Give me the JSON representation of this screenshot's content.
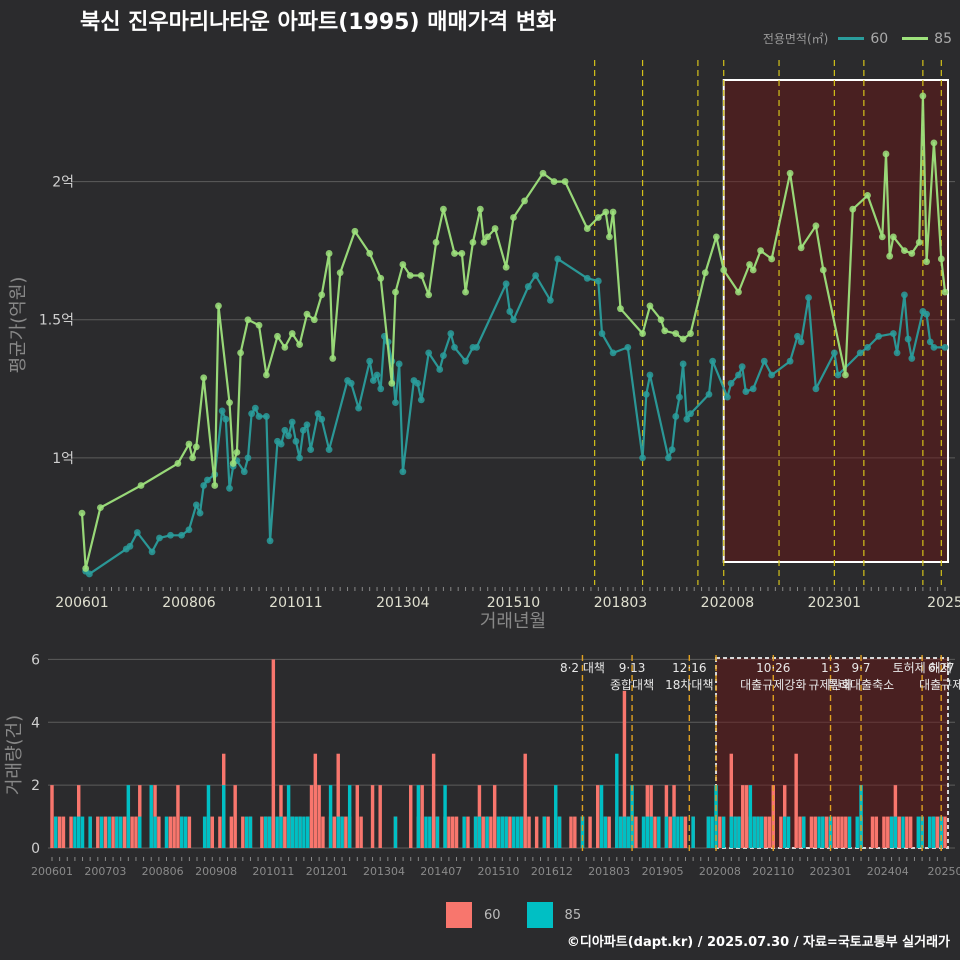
{
  "title": "북신 진우마리나타운 아파트(1995) 매매가격 변화",
  "legend": {
    "title": "전용면적(㎡)",
    "items": [
      {
        "label": "60",
        "color": "#2a9d9c"
      },
      {
        "label": "85",
        "color": "#9ee27c"
      }
    ]
  },
  "volume_legend": [
    {
      "label": "60",
      "color": "#f8766d"
    },
    {
      "label": "85",
      "color": "#00bfc4"
    }
  ],
  "footer": "©디아파트(dapt.kr) / 2025.07.30 / 자료=국토교통부 실거래가",
  "chart_data": [
    {
      "type": "line",
      "ylabel": "평균가(억원)",
      "xlabel": "거래년월",
      "y_ticks": [
        {
          "value": 1.0,
          "label": "1억"
        },
        {
          "value": 1.5,
          "label": "1.5억"
        },
        {
          "value": 2.0,
          "label": "2억"
        }
      ],
      "x_ticks": [
        "200601",
        "200806",
        "201011",
        "201304",
        "201510",
        "201803",
        "202008",
        "202301",
        "2025"
      ],
      "ylim": [
        0.54,
        2.44
      ],
      "highlight_range": [
        "2020-07",
        "2025-07"
      ],
      "policy_lines": [
        "2017-08",
        "2018-09",
        "2019-12",
        "2020-07",
        "2021-10",
        "2023-01",
        "2023-09",
        "2025-01",
        "2025-06"
      ],
      "series": [
        {
          "name": "60",
          "color": "#2a9d9c",
          "points": [
            [
              "2006-02",
              0.59
            ],
            [
              "2006-03",
              0.58
            ],
            [
              "2007-01",
              0.67
            ],
            [
              "2007-02",
              0.68
            ],
            [
              "2007-04",
              0.73
            ],
            [
              "2007-08",
              0.66
            ],
            [
              "2007-10",
              0.71
            ],
            [
              "2008-01",
              0.72
            ],
            [
              "2008-04",
              0.72
            ],
            [
              "2008-06",
              0.74
            ],
            [
              "2008-08",
              0.83
            ],
            [
              "2008-09",
              0.8
            ],
            [
              "2008-10",
              0.9
            ],
            [
              "2008-11",
              0.92
            ],
            [
              "2009-01",
              0.94
            ],
            [
              "2009-03",
              1.17
            ],
            [
              "2009-04",
              1.14
            ],
            [
              "2009-05",
              0.89
            ],
            [
              "2009-06",
              0.97
            ],
            [
              "2009-07",
              0.99
            ],
            [
              "2009-09",
              0.95
            ],
            [
              "2009-10",
              1.0
            ],
            [
              "2009-11",
              1.16
            ],
            [
              "2009-12",
              1.18
            ],
            [
              "2010-01",
              1.15
            ],
            [
              "2010-03",
              1.15
            ],
            [
              "2010-04",
              0.7
            ],
            [
              "2010-06",
              1.06
            ],
            [
              "2010-07",
              1.05
            ],
            [
              "2010-08",
              1.1
            ],
            [
              "2010-09",
              1.08
            ],
            [
              "2010-10",
              1.13
            ],
            [
              "2010-11",
              1.06
            ],
            [
              "2010-12",
              1.0
            ],
            [
              "2011-01",
              1.1
            ],
            [
              "2011-02",
              1.12
            ],
            [
              "2011-03",
              1.03
            ],
            [
              "2011-05",
              1.16
            ],
            [
              "2011-06",
              1.14
            ],
            [
              "2011-08",
              1.03
            ],
            [
              "2012-01",
              1.28
            ],
            [
              "2012-02",
              1.27
            ],
            [
              "2012-04",
              1.18
            ],
            [
              "2012-07",
              1.35
            ],
            [
              "2012-08",
              1.28
            ],
            [
              "2012-09",
              1.3
            ],
            [
              "2012-10",
              1.25
            ],
            [
              "2012-11",
              1.44
            ],
            [
              "2012-12",
              1.42
            ],
            [
              "2013-01",
              1.35
            ],
            [
              "2013-02",
              1.2
            ],
            [
              "2013-03",
              1.34
            ],
            [
              "2013-04",
              0.95
            ],
            [
              "2013-07",
              1.28
            ],
            [
              "2013-08",
              1.27
            ],
            [
              "2013-09",
              1.21
            ],
            [
              "2013-11",
              1.38
            ],
            [
              "2014-02",
              1.32
            ],
            [
              "2014-03",
              1.37
            ],
            [
              "2014-05",
              1.45
            ],
            [
              "2014-06",
              1.4
            ],
            [
              "2014-09",
              1.35
            ],
            [
              "2014-11",
              1.4
            ],
            [
              "2014-12",
              1.4
            ],
            [
              "2015-08",
              1.63
            ],
            [
              "2015-09",
              1.53
            ],
            [
              "2015-10",
              1.5
            ],
            [
              "2016-02",
              1.62
            ],
            [
              "2016-04",
              1.66
            ],
            [
              "2016-08",
              1.57
            ],
            [
              "2016-10",
              1.72
            ],
            [
              "2017-06",
              1.65
            ],
            [
              "2017-09",
              1.64
            ],
            [
              "2017-10",
              1.45
            ],
            [
              "2018-01",
              1.38
            ],
            [
              "2018-05",
              1.4
            ],
            [
              "2018-09",
              1.0
            ],
            [
              "2018-10",
              1.23
            ],
            [
              "2018-11",
              1.3
            ],
            [
              "2019-04",
              1.0
            ],
            [
              "2019-05",
              1.03
            ],
            [
              "2019-06",
              1.15
            ],
            [
              "2019-07",
              1.22
            ],
            [
              "2019-08",
              1.34
            ],
            [
              "2019-09",
              1.14
            ],
            [
              "2019-10",
              1.16
            ],
            [
              "2020-03",
              1.23
            ],
            [
              "2020-04",
              1.35
            ],
            [
              "2020-08",
              1.22
            ],
            [
              "2020-09",
              1.27
            ],
            [
              "2020-11",
              1.3
            ],
            [
              "2020-12",
              1.33
            ],
            [
              "2021-01",
              1.24
            ],
            [
              "2021-03",
              1.25
            ],
            [
              "2021-06",
              1.35
            ],
            [
              "2021-08",
              1.3
            ],
            [
              "2022-01",
              1.35
            ],
            [
              "2022-03",
              1.44
            ],
            [
              "2022-04",
              1.42
            ],
            [
              "2022-06",
              1.58
            ],
            [
              "2022-08",
              1.25
            ],
            [
              "2023-01",
              1.38
            ],
            [
              "2023-02",
              1.3
            ],
            [
              "2023-08",
              1.38
            ],
            [
              "2023-10",
              1.4
            ],
            [
              "2024-01",
              1.44
            ],
            [
              "2024-05",
              1.45
            ],
            [
              "2024-06",
              1.38
            ],
            [
              "2024-08",
              1.59
            ],
            [
              "2024-09",
              1.43
            ],
            [
              "2024-10",
              1.36
            ],
            [
              "2025-01",
              1.53
            ],
            [
              "2025-02",
              1.52
            ],
            [
              "2025-03",
              1.42
            ],
            [
              "2025-04",
              1.4
            ],
            [
              "2025-07",
              1.4
            ]
          ]
        },
        {
          "name": "85",
          "color": "#9ee27c",
          "points": [
            [
              "2006-01",
              0.8
            ],
            [
              "2006-02",
              0.6
            ],
            [
              "2006-06",
              0.82
            ],
            [
              "2007-05",
              0.9
            ],
            [
              "2008-03",
              0.98
            ],
            [
              "2008-06",
              1.05
            ],
            [
              "2008-07",
              1.0
            ],
            [
              "2008-08",
              1.04
            ],
            [
              "2008-10",
              1.29
            ],
            [
              "2009-01",
              0.9
            ],
            [
              "2009-02",
              1.55
            ],
            [
              "2009-05",
              1.2
            ],
            [
              "2009-06",
              0.98
            ],
            [
              "2009-07",
              1.02
            ],
            [
              "2009-08",
              1.38
            ],
            [
              "2009-10",
              1.5
            ],
            [
              "2010-01",
              1.48
            ],
            [
              "2010-03",
              1.3
            ],
            [
              "2010-06",
              1.44
            ],
            [
              "2010-08",
              1.4
            ],
            [
              "2010-10",
              1.45
            ],
            [
              "2010-12",
              1.41
            ],
            [
              "2011-02",
              1.52
            ],
            [
              "2011-04",
              1.5
            ],
            [
              "2011-06",
              1.59
            ],
            [
              "2011-08",
              1.74
            ],
            [
              "2011-09",
              1.36
            ],
            [
              "2011-11",
              1.67
            ],
            [
              "2012-03",
              1.82
            ],
            [
              "2012-07",
              1.74
            ],
            [
              "2012-10",
              1.65
            ],
            [
              "2013-01",
              1.27
            ],
            [
              "2013-02",
              1.6
            ],
            [
              "2013-04",
              1.7
            ],
            [
              "2013-06",
              1.66
            ],
            [
              "2013-09",
              1.66
            ],
            [
              "2013-11",
              1.59
            ],
            [
              "2014-01",
              1.78
            ],
            [
              "2014-03",
              1.9
            ],
            [
              "2014-06",
              1.74
            ],
            [
              "2014-08",
              1.74
            ],
            [
              "2014-09",
              1.6
            ],
            [
              "2014-11",
              1.78
            ],
            [
              "2015-01",
              1.9
            ],
            [
              "2015-02",
              1.78
            ],
            [
              "2015-03",
              1.8
            ],
            [
              "2015-05",
              1.83
            ],
            [
              "2015-08",
              1.69
            ],
            [
              "2015-10",
              1.87
            ],
            [
              "2016-01",
              1.93
            ],
            [
              "2016-06",
              2.03
            ],
            [
              "2016-09",
              2.0
            ],
            [
              "2016-12",
              2.0
            ],
            [
              "2017-06",
              1.83
            ],
            [
              "2017-09",
              1.87
            ],
            [
              "2017-11",
              1.89
            ],
            [
              "2017-12",
              1.8
            ],
            [
              "2018-01",
              1.89
            ],
            [
              "2018-03",
              1.54
            ],
            [
              "2018-09",
              1.45
            ],
            [
              "2018-11",
              1.55
            ],
            [
              "2019-02",
              1.5
            ],
            [
              "2019-03",
              1.46
            ],
            [
              "2019-06",
              1.45
            ],
            [
              "2019-08",
              1.43
            ],
            [
              "2019-10",
              1.45
            ],
            [
              "2020-02",
              1.67
            ],
            [
              "2020-05",
              1.8
            ],
            [
              "2020-07",
              1.68
            ],
            [
              "2020-11",
              1.6
            ],
            [
              "2021-02",
              1.7
            ],
            [
              "2021-03",
              1.68
            ],
            [
              "2021-05",
              1.75
            ],
            [
              "2021-08",
              1.72
            ],
            [
              "2022-01",
              2.03
            ],
            [
              "2022-04",
              1.76
            ],
            [
              "2022-08",
              1.84
            ],
            [
              "2022-10",
              1.68
            ],
            [
              "2023-04",
              1.3
            ],
            [
              "2023-06",
              1.9
            ],
            [
              "2023-10",
              1.95
            ],
            [
              "2024-02",
              1.8
            ],
            [
              "2024-03",
              2.1
            ],
            [
              "2024-04",
              1.73
            ],
            [
              "2024-05",
              1.8
            ],
            [
              "2024-08",
              1.75
            ],
            [
              "2024-10",
              1.74
            ],
            [
              "2024-12",
              1.78
            ],
            [
              "2025-01",
              2.31
            ],
            [
              "2025-02",
              1.71
            ],
            [
              "2025-04",
              2.14
            ],
            [
              "2025-06",
              1.72
            ],
            [
              "2025-07",
              1.6
            ]
          ]
        }
      ]
    },
    {
      "type": "bar",
      "ylabel": "거래량(건)",
      "y_ticks": [
        0,
        2,
        4,
        6
      ],
      "ylim": [
        0,
        6.3
      ],
      "x_ticks": [
        "200601",
        "200703",
        "200806",
        "200908",
        "201011",
        "201201",
        "201304",
        "201407",
        "201510",
        "201612",
        "201803",
        "201905",
        "202008",
        "202110",
        "202301",
        "202404",
        "20250"
      ],
      "annotations": [
        {
          "date": "2017-08",
          "lines": [
            "8·2 대책"
          ]
        },
        {
          "date": "2018-09",
          "lines": [
            "9·13",
            "종합대책"
          ]
        },
        {
          "date": "2019-12",
          "lines": [
            "12·16",
            "18차대책"
          ]
        },
        {
          "date": "2021-10",
          "lines": [
            "10·26",
            "대출규제강화"
          ]
        },
        {
          "date": "2023-01",
          "lines": [
            "1·3",
            "규제완화"
          ]
        },
        {
          "date": "2023-09",
          "lines": [
            "9·7",
            "특례대출축소"
          ]
        },
        {
          "date": "2025-01",
          "lines": [
            "토허제 해제"
          ]
        },
        {
          "date": "2025-06",
          "lines": [
            "6·27",
            "대출규제"
          ]
        }
      ],
      "spike_months": {
        "60": {
          "2010-11": 6,
          "2018-07": 5,
          "2009-10": 3,
          "2011-10": 3,
          "2012-04": 3,
          "2014-05": 3,
          "2016-05": 3,
          "2020-11": 3,
          "2022-04": 3
        },
        "85": {
          "2008-03": 2,
          "2009-10": 2,
          "2018-05": 3
        }
      }
    }
  ]
}
